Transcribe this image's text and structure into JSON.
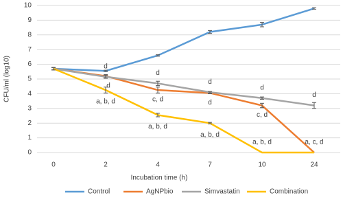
{
  "chart_data": {
    "type": "line",
    "x_label": "Incubation time (h)",
    "y_label": "CFU/ml (log10)",
    "categories": [
      "0",
      "2",
      "4",
      "7",
      "10",
      "24"
    ],
    "ylim": [
      0,
      10
    ],
    "yticks": [
      0,
      1,
      2,
      3,
      4,
      5,
      6,
      7,
      8,
      9,
      10
    ],
    "grid": true,
    "legend": "bottom",
    "series": [
      {
        "name": "Control",
        "color": "#5b9bd5",
        "values": [
          5.7,
          5.55,
          6.6,
          8.2,
          8.7,
          9.8
        ],
        "errors": [
          0.08,
          0.05,
          0.05,
          0.1,
          0.15,
          0.05
        ],
        "labels": [
          null,
          null,
          null,
          null,
          null,
          null
        ]
      },
      {
        "name": "AgNPbio",
        "color": "#ed7d31",
        "values": [
          5.7,
          5.2,
          4.25,
          4.05,
          3.2,
          0
        ],
        "errors": [
          0.08,
          0.1,
          0.2,
          0.05,
          0.15,
          0
        ],
        "labels": [
          null,
          "d",
          "c, d",
          "d",
          "c, d",
          "a, c, d"
        ]
      },
      {
        "name": "Simvastatin",
        "color": "#a5a5a5",
        "values": [
          5.7,
          5.15,
          4.7,
          4.1,
          3.7,
          3.2
        ],
        "errors": [
          0.08,
          0.1,
          0.15,
          0.05,
          0.08,
          0.2
        ],
        "labels": [
          null,
          "d",
          "d",
          "d",
          "d",
          "d"
        ]
      },
      {
        "name": "Combination",
        "color": "#ffc000",
        "values": [
          5.7,
          4.25,
          2.55,
          2.0,
          0,
          0
        ],
        "errors": [
          0.08,
          0.2,
          0.12,
          0.05,
          0,
          0
        ],
        "labels": [
          null,
          "a, b, d",
          "a, b, d",
          "a, b, d",
          "a, b, d",
          null
        ]
      }
    ]
  }
}
